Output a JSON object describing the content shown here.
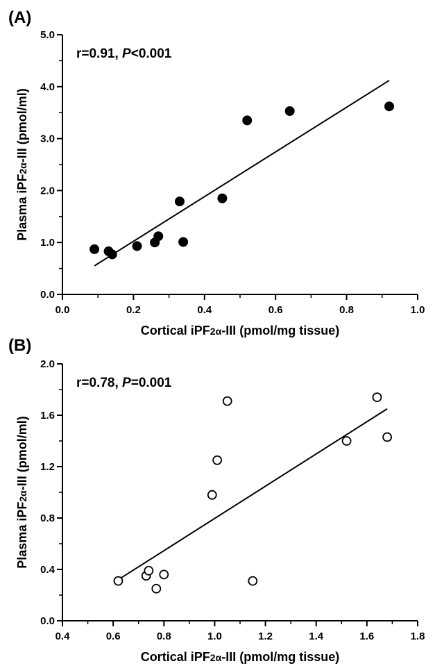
{
  "chart_data": [
    {
      "panel_label": "(A)",
      "type": "scatter",
      "annotation": {
        "r": "r=0.91, ",
        "p_symbol": "P",
        "p_value": "<0.001"
      },
      "xlabel": {
        "prefix": "Cortical iPF",
        "sub": "2α",
        "suffix": "-III (pmol/mg tissue)"
      },
      "ylabel": {
        "prefix": "Plasma iPF",
        "sub": "2α",
        "suffix": "-III (pmol/ml)"
      },
      "xlim": [
        0,
        1.0
      ],
      "ylim": [
        0,
        5.0
      ],
      "xticks": [
        "0.0",
        "0.2",
        "0.4",
        "0.6",
        "0.8",
        "1.0"
      ],
      "yticks": [
        "0.0",
        "1.0",
        "2.0",
        "3.0",
        "4.0",
        "5.0"
      ],
      "marker": "filled-circle",
      "points": [
        [
          0.09,
          0.87
        ],
        [
          0.13,
          0.83
        ],
        [
          0.14,
          0.77
        ],
        [
          0.21,
          0.93
        ],
        [
          0.26,
          1.0
        ],
        [
          0.27,
          1.12
        ],
        [
          0.33,
          1.79
        ],
        [
          0.34,
          1.01
        ],
        [
          0.45,
          1.85
        ],
        [
          0.52,
          3.35
        ],
        [
          0.64,
          3.53
        ],
        [
          0.92,
          3.62
        ]
      ],
      "fit_line": [
        [
          0.09,
          0.55
        ],
        [
          0.92,
          4.12
        ]
      ]
    },
    {
      "panel_label": "(B)",
      "type": "scatter",
      "annotation": {
        "r": "r=0.78, ",
        "p_symbol": "P",
        "p_value": "=0.001"
      },
      "xlabel": {
        "prefix": "Cortical iPF",
        "sub": "2α",
        "suffix": "-III (pmol/mg tissue)"
      },
      "ylabel": {
        "prefix": "Plasma iPF",
        "sub": "2α",
        "suffix": "-III (pmol/ml)"
      },
      "xlim": [
        0.4,
        1.8
      ],
      "ylim": [
        0,
        2.0
      ],
      "xticks": [
        "0.4",
        "0.6",
        "0.8",
        "1.0",
        "1.2",
        "1.4",
        "1.6",
        "1.8"
      ],
      "yticks": [
        "0.0",
        "0.4",
        "0.8",
        "1.2",
        "1.6",
        "2.0"
      ],
      "marker": "open-circle",
      "points": [
        [
          0.62,
          0.31
        ],
        [
          0.73,
          0.35
        ],
        [
          0.74,
          0.39
        ],
        [
          0.77,
          0.25
        ],
        [
          0.8,
          0.36
        ],
        [
          0.99,
          0.98
        ],
        [
          1.01,
          1.25
        ],
        [
          1.05,
          1.71
        ],
        [
          1.15,
          0.31
        ],
        [
          1.52,
          1.4
        ],
        [
          1.64,
          1.74
        ],
        [
          1.68,
          1.43
        ]
      ],
      "fit_line": [
        [
          0.62,
          0.32
        ],
        [
          1.68,
          1.65
        ]
      ]
    }
  ]
}
